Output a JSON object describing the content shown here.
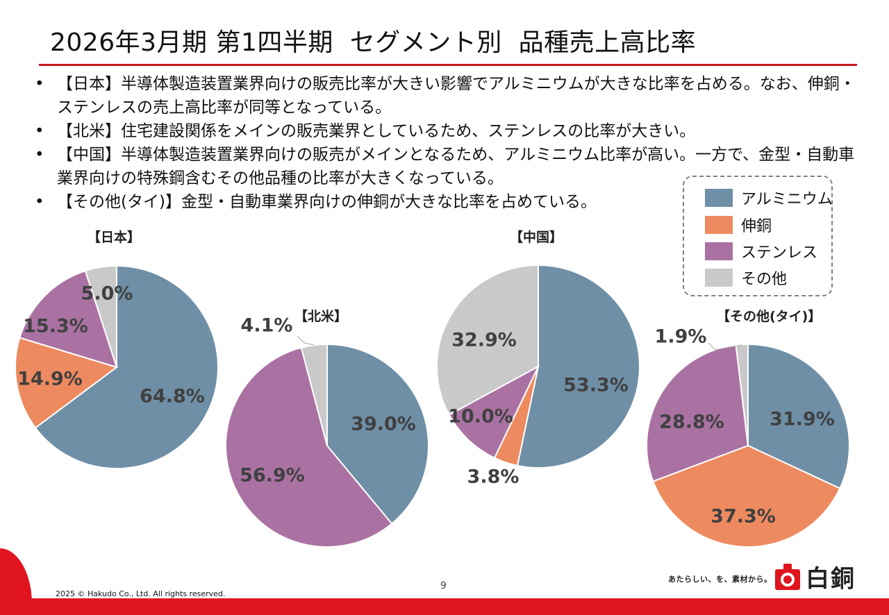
{
  "title": "2026年3月期 第1四半期  セグメント別  品種売上高比率",
  "bullets": [
    "【日本】半導体製造装置業界向けの販売比率が大きい影響でアルミニウムが大きな比率を占める。なお、伸銅・ステンレスの売上高比率が同等となっている。",
    "【北米】住宅建設関係をメインの販売業界としているため、ステンレスの比率が大きい。",
    "【中国】半導体製造装置業界向けの販売がメインとなるため、アルミニウム比率が高い。一方で、金型・自動車業界向けの特殊鋼含むその他品種の比率が大きくなっている。",
    "【その他(タイ)】金型・自動車業界向けの伸銅が大きな比率を占めている。"
  ],
  "bullet_symbol": "•",
  "legend": {
    "items": [
      {
        "label": "アルミニウム",
        "color": "#6f8fa6"
      },
      {
        "label": "伸銅",
        "color": "#ee8a5f"
      },
      {
        "label": "ステンレス",
        "color": "#aa72a3"
      },
      {
        "label": "その他",
        "color": "#c9c9c9"
      }
    ]
  },
  "chart_data": [
    {
      "type": "pie",
      "title": "【日本】",
      "categories": [
        "アルミニウム",
        "伸銅",
        "ステンレス",
        "その他"
      ],
      "values": [
        64.8,
        14.9,
        15.3,
        5.0
      ],
      "labels": [
        "64.8%",
        "14.9%",
        "15.3%",
        "5.0%"
      ]
    },
    {
      "type": "pie",
      "title": "【北米】",
      "categories": [
        "アルミニウム",
        "伸銅",
        "ステンレス",
        "その他"
      ],
      "values": [
        39.0,
        0,
        56.9,
        4.1
      ],
      "labels": [
        "39.0%",
        "",
        "56.9%",
        "4.1%"
      ]
    },
    {
      "type": "pie",
      "title": "【中国】",
      "categories": [
        "アルミニウム",
        "伸銅",
        "ステンレス",
        "その他"
      ],
      "values": [
        53.3,
        3.8,
        10.0,
        32.9
      ],
      "labels": [
        "53.3%",
        "3.8%",
        "10.0%",
        "32.9%"
      ]
    },
    {
      "type": "pie",
      "title": "【その他(タイ)】",
      "categories": [
        "アルミニウム",
        "伸銅",
        "ステンレス",
        "その他"
      ],
      "values": [
        31.9,
        37.3,
        28.8,
        1.9
      ],
      "labels": [
        "31.9%",
        "37.3%",
        "28.8%",
        "1.9%"
      ]
    }
  ],
  "footer": {
    "copyright": "2025 © Hakudo Co., Ltd. All rights reserved.",
    "page_number": "9",
    "tagline": "あたらしい、を、素材から。",
    "logo_text": "白銅"
  }
}
